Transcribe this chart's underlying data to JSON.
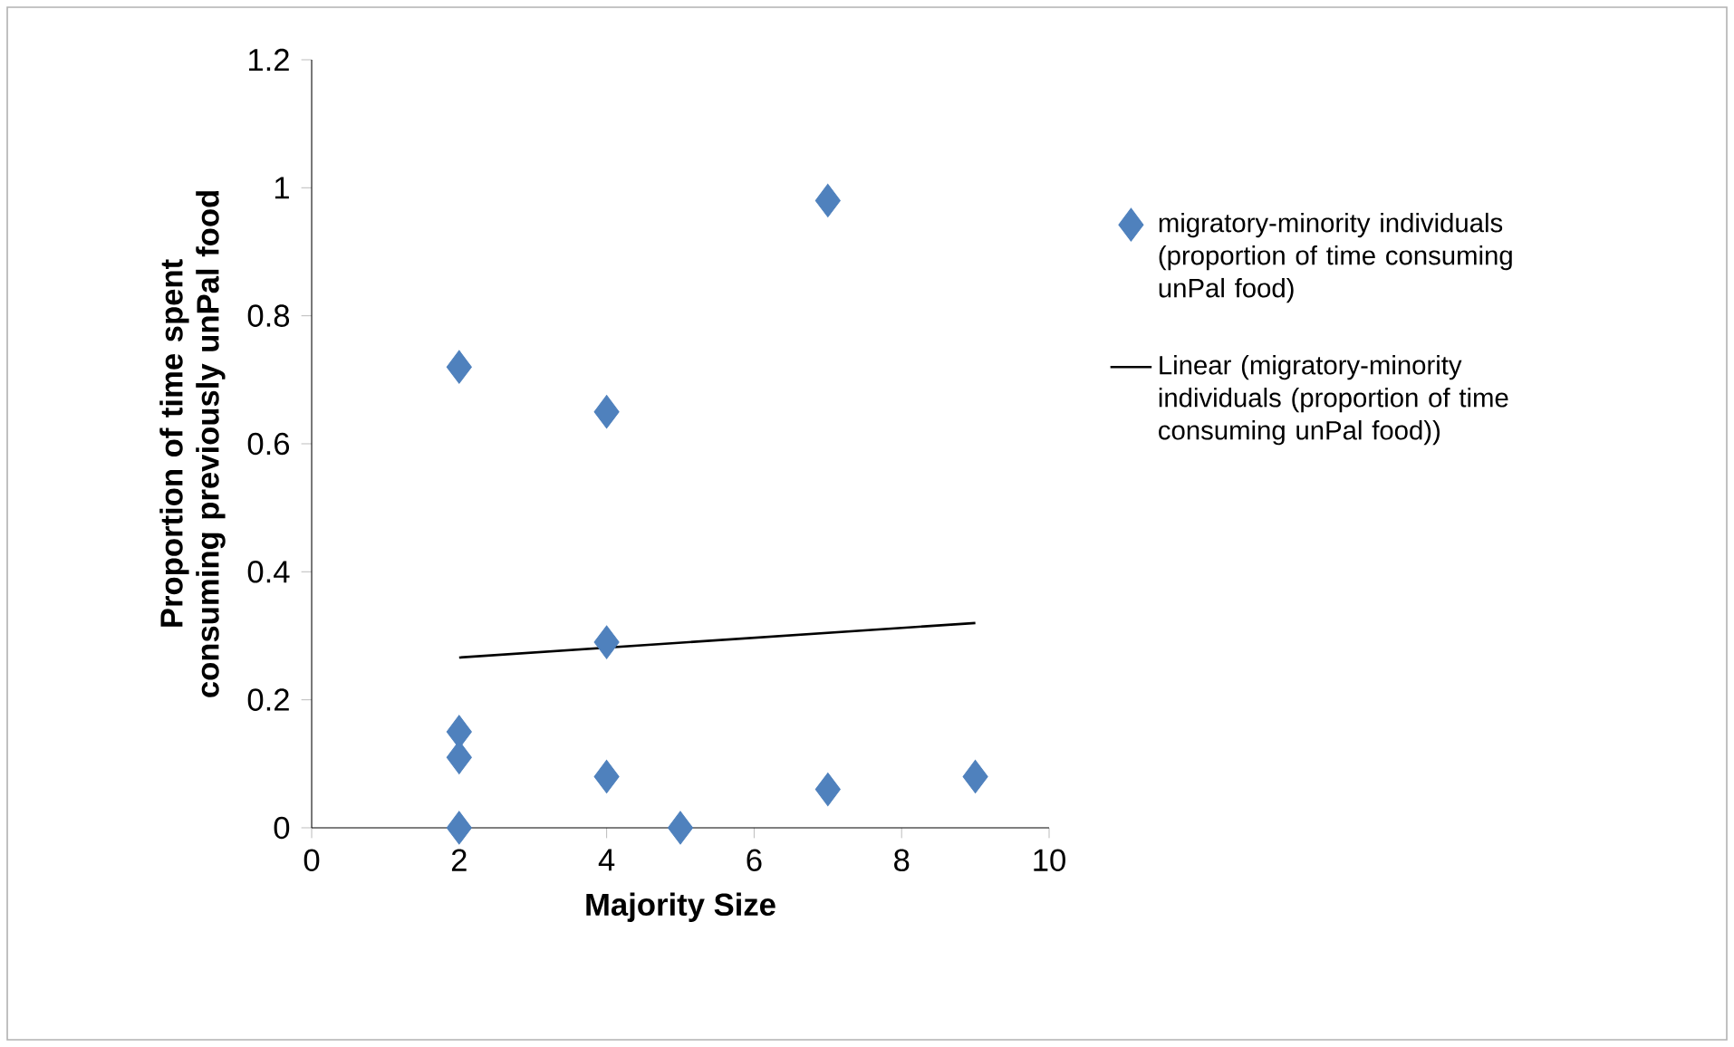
{
  "chart_data": {
    "type": "scatter",
    "xlabel": "Majority Size",
    "ylabel": "Proportion of time spent consuming previously unPal food",
    "xlim": [
      0,
      10
    ],
    "xticks": [
      0,
      2,
      4,
      6,
      8,
      10
    ],
    "ylim": [
      0,
      1.2
    ],
    "yticks": [
      0,
      0.2,
      0.4,
      0.6,
      0.8,
      1,
      1.2
    ],
    "grid": false,
    "legend": "right",
    "series": [
      {
        "name": "migratory-minority individuals (proportion of time consuming unPal food)",
        "marker": "diamond",
        "color": "#4f81bd",
        "x": [
          2,
          2,
          2,
          2,
          4,
          4,
          4,
          5,
          7,
          7,
          9
        ],
        "values": [
          0.72,
          0.15,
          0.11,
          0,
          0.65,
          0.29,
          0.08,
          0,
          0.98,
          0.06,
          0.08
        ]
      },
      {
        "name": "Linear (migratory-minority individuals (proportion of time consuming unPal food))",
        "type": "line",
        "marker": "none",
        "color": "#000000",
        "x": [
          2,
          9
        ],
        "values": [
          0.266,
          0.32
        ]
      }
    ]
  }
}
